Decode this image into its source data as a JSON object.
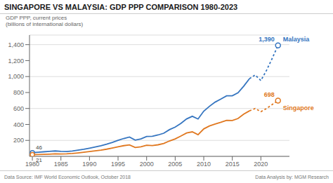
{
  "chart_data": {
    "type": "line",
    "title": "SINGAPORE VS MALAYSIA: GDP PPP COMPARISON 1980-2023",
    "ylabel": [
      "GDP PPP, current prices",
      "(billions of international dollars)"
    ],
    "footnotes": [
      "Data Source: IMF World Economic Outlook, October 2018",
      "Data Analysis by: MGM Research"
    ],
    "x": [
      1980,
      1981,
      1982,
      1983,
      1984,
      1985,
      1986,
      1987,
      1988,
      1989,
      1990,
      1991,
      1992,
      1993,
      1994,
      1995,
      1996,
      1997,
      1998,
      1999,
      2000,
      2001,
      2002,
      2003,
      2004,
      2005,
      2006,
      2007,
      2008,
      2009,
      2010,
      2011,
      2012,
      2013,
      2014,
      2015,
      2016,
      2017,
      2018,
      2019,
      2020,
      2021,
      2022,
      2023
    ],
    "series": [
      {
        "name": "Malaysia",
        "color": "#3575c0",
        "line_style": "solid",
        "marker": "circle",
        "values": [
          46,
          51,
          57,
          62,
          68,
          63,
          61,
          67,
          78,
          89,
          103,
          118,
          132,
          152,
          174,
          201,
          224,
          242,
          203,
          219,
          249,
          252,
          268,
          290,
          335,
          367,
          413,
          469,
          502,
          468,
          566,
          627,
          680,
          718,
          759,
          759,
          797,
          880,
          973,
          null,
          null,
          null,
          null,
          null
        ]
      },
      {
        "name": "Malaysia",
        "color": "#3575c0",
        "line_style": "dashed",
        "marker": "circle",
        "values": [
          null,
          null,
          null,
          null,
          null,
          null,
          null,
          null,
          null,
          null,
          null,
          null,
          null,
          null,
          null,
          null,
          null,
          null,
          null,
          null,
          null,
          null,
          null,
          null,
          null,
          null,
          null,
          null,
          null,
          null,
          null,
          null,
          null,
          null,
          null,
          null,
          null,
          null,
          973,
          1020,
          950,
          1080,
          1230,
          1390
        ]
      },
      {
        "name": "Singapore",
        "color": "#e07820",
        "line_style": "solid",
        "marker": "circle",
        "values": [
          21,
          23,
          26,
          28,
          31,
          30,
          31,
          36,
          43,
          51,
          60,
          70,
          78,
          90,
          104,
          119,
          134,
          143,
          111,
          120,
          139,
          135,
          145,
          162,
          193,
          219,
          255,
          293,
          307,
          272,
          344,
          381,
          406,
          427,
          452,
          450,
          474,
          530,
          570,
          null,
          null,
          null,
          null,
          null
        ]
      },
      {
        "name": "Singapore",
        "color": "#e07820",
        "line_style": "dashed",
        "marker": "circle",
        "values": [
          null,
          null,
          null,
          null,
          null,
          null,
          null,
          null,
          null,
          null,
          null,
          null,
          null,
          null,
          null,
          null,
          null,
          null,
          null,
          null,
          null,
          null,
          null,
          null,
          null,
          null,
          null,
          null,
          null,
          null,
          null,
          null,
          null,
          null,
          null,
          null,
          null,
          null,
          570,
          600,
          560,
          600,
          650,
          698
        ]
      }
    ],
    "annotations": [
      {
        "text": "46",
        "x": 1980,
        "y": 46,
        "color": "#444444"
      },
      {
        "text": "21",
        "x": 1980,
        "y": 21,
        "color": "#444444"
      },
      {
        "text": "1,390",
        "x": 2023,
        "y": 1390,
        "color": "#3575c0"
      },
      {
        "text": "698",
        "x": 2023,
        "y": 698,
        "color": "#e07820"
      },
      {
        "text": "Malaysia",
        "x": 2023,
        "y": 1390,
        "color": "#3575c0"
      },
      {
        "text": "Singapore",
        "x": 2023,
        "y": 698,
        "color": "#e07820"
      }
    ],
    "xlim": [
      1979.5,
      2025
    ],
    "xticks": [
      1980,
      1985,
      1990,
      1995,
      2000,
      2005,
      2010,
      2015,
      2020
    ],
    "ylim": [
      0,
      1520
    ],
    "yticks": [
      200,
      400,
      600,
      800,
      {
        "value": 1000,
        "label": "1,000"
      },
      {
        "value": 1200,
        "label": "1,200"
      },
      {
        "value": 1400,
        "label": "1,400"
      }
    ],
    "grid": true
  }
}
